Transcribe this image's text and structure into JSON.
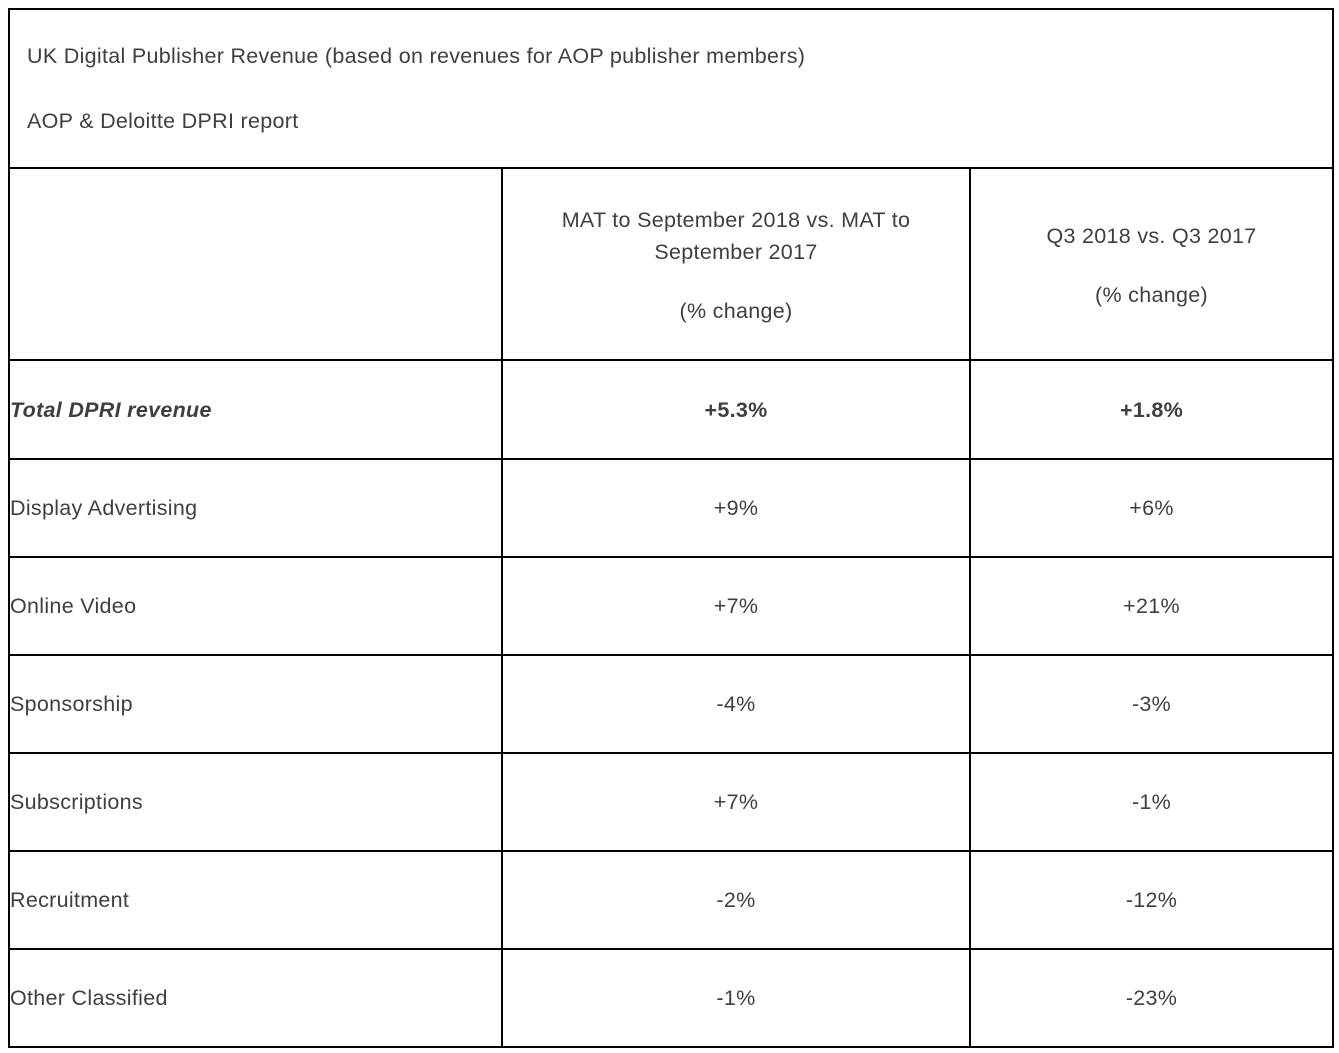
{
  "title": {
    "line1": "UK Digital Publisher Revenue (based on revenues for AOP publisher members)",
    "line2": "AOP & Deloitte DPRI report"
  },
  "table": {
    "columns": [
      {
        "header_lines": [
          ""
        ],
        "subheader": ""
      },
      {
        "header": "MAT to September 2018 vs. MAT to September 2017",
        "header_lines": [
          "MAT to September 2018 vs. MAT to",
          "September 2017"
        ],
        "subheader": "(% change)"
      },
      {
        "header": "Q3 2018 vs. Q3 2017",
        "header_lines": [
          "Q3 2018 vs. Q3 2017"
        ],
        "subheader": "(% change)"
      }
    ],
    "rows": [
      {
        "label": "Total DPRI revenue",
        "mat": "+5.3%",
        "q3": "+1.8%",
        "emphasis": true
      },
      {
        "label": "Display Advertising",
        "mat": "+9%",
        "q3": "+6%"
      },
      {
        "label": "Online Video",
        "mat": "+7%",
        "q3": "+21%"
      },
      {
        "label": "Sponsorship",
        "mat": "-4%",
        "q3": "-3%"
      },
      {
        "label": "Subscriptions",
        "mat": "+7%",
        "q3": "-1%"
      },
      {
        "label": "Recruitment",
        "mat": "-2%",
        "q3": "-12%"
      },
      {
        "label": "Other Classified",
        "mat": "-1%",
        "q3": "-23%"
      }
    ]
  },
  "chart_data": {
    "type": "table",
    "title": "UK Digital Publisher Revenue (based on revenues for AOP publisher members)",
    "subtitle": "AOP & Deloitte DPRI report",
    "categories": [
      "Total DPRI revenue",
      "Display Advertising",
      "Online Video",
      "Sponsorship",
      "Subscriptions",
      "Recruitment",
      "Other Classified"
    ],
    "series": [
      {
        "name": "MAT to September 2018 vs. MAT to September 2017 (% change)",
        "values": [
          5.3,
          9,
          7,
          -4,
          7,
          -2,
          -1
        ]
      },
      {
        "name": "Q3 2018 vs. Q3 2017 (% change)",
        "values": [
          1.8,
          6,
          21,
          -3,
          -1,
          -12,
          -23
        ]
      }
    ]
  },
  "colors": {
    "border": "#000000",
    "text": "#3c4043",
    "background": "#ffffff"
  }
}
